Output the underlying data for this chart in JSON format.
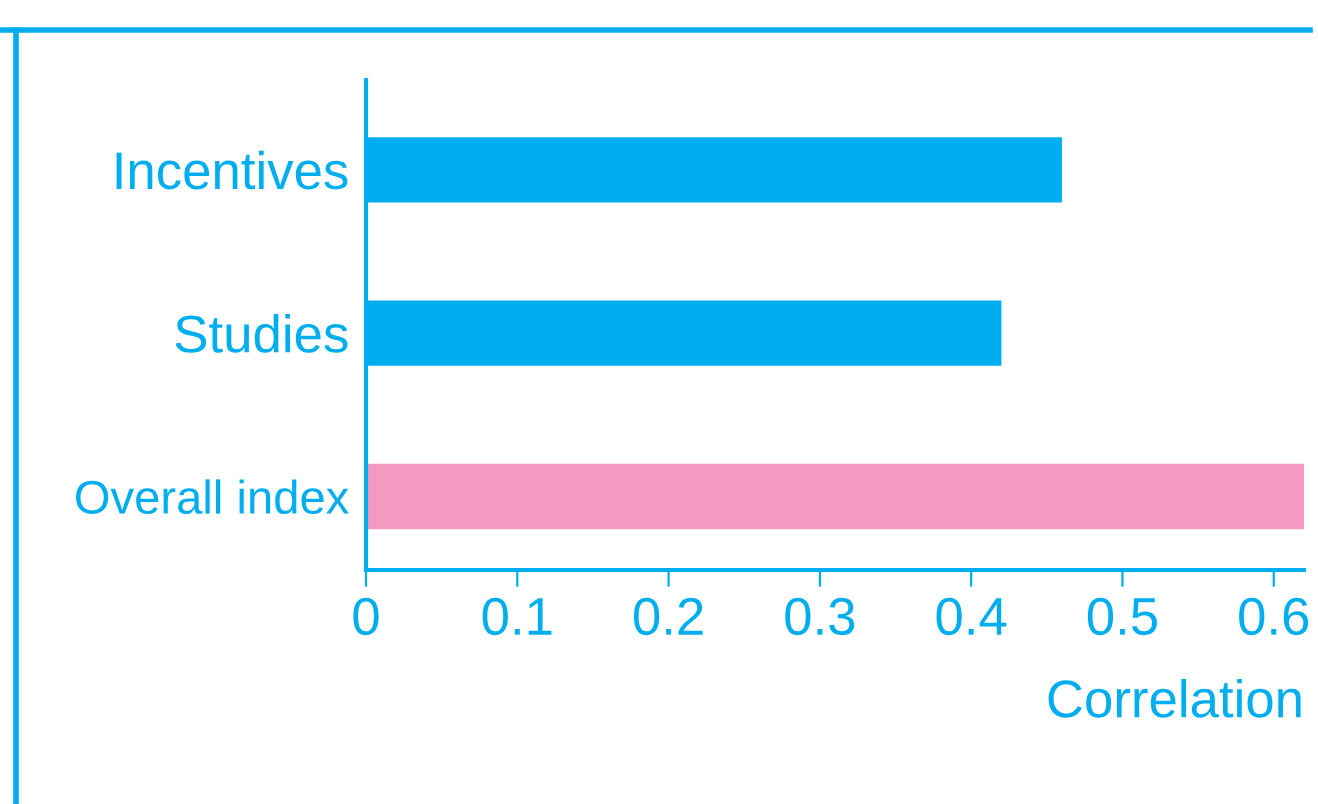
{
  "chart_data": {
    "type": "bar",
    "orientation": "horizontal",
    "xlabel": "Correlation",
    "categories": [
      "Incentives",
      "Studies",
      "Overall index"
    ],
    "values": [
      0.46,
      0.42,
      0.62
    ],
    "colors": [
      "#00aeef",
      "#00aeef",
      "#f49ac1"
    ],
    "xlim": [
      0,
      0.62
    ],
    "xticks": [
      0,
      0.1,
      0.2,
      0.3,
      0.4,
      0.5,
      0.6
    ],
    "grid": false,
    "legend": false
  }
}
